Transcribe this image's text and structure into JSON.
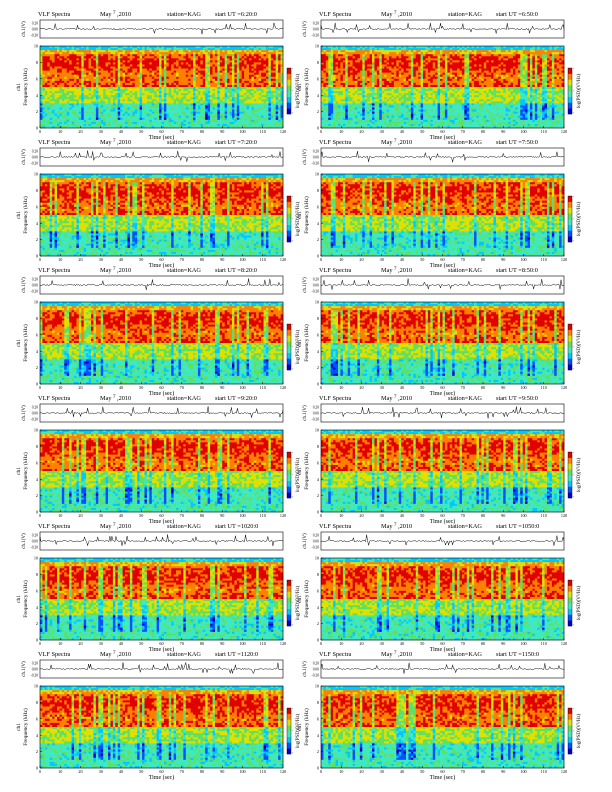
{
  "page": {
    "header_prefix": "VLF Spectra",
    "month_year": "May",
    "day_superscript": "7",
    "year": ",2010",
    "station": "station=KAG",
    "ut_prefix": "start  UT  ="
  },
  "labels": {
    "amp_axis": "ch.1(V)",
    "freq_axis_ch": "ch1",
    "freq_axis": "Frequency  (kHz)",
    "time_axis": "Time  (sec)",
    "colorbar_label": "log(PSD)(V²/Hz)"
  },
  "colors": {
    "spectrogram_scale": [
      "#0000c8",
      "#0050ff",
      "#00c8ff",
      "#40e8c0",
      "#60e060",
      "#e0e000",
      "#ff8000",
      "#e00000"
    ],
    "frame": "#000000",
    "background": "#ffffff"
  },
  "chart_data": [
    {
      "type": "heatmap",
      "panel": 1,
      "start_ut": "6:20:0",
      "xlim": [
        0,
        120
      ],
      "ylim": [
        0,
        10
      ],
      "x_ticks": [
        0,
        10,
        20,
        30,
        40,
        50,
        60,
        70,
        80,
        90,
        100,
        110,
        120
      ],
      "y_ticks": [
        0,
        2,
        4,
        6,
        8,
        10
      ],
      "amp_ticks": [
        "0.20",
        "0.00",
        "-0.20"
      ],
      "colorbar_ticks": [
        "-",
        "-",
        "-"
      ]
    },
    {
      "type": "heatmap",
      "panel": 2,
      "start_ut": "6:50:0",
      "xlim": [
        0,
        120
      ],
      "ylim": [
        0,
        10
      ],
      "x_ticks": [
        0,
        10,
        20,
        30,
        40,
        50,
        60,
        70,
        80,
        90,
        100,
        110,
        120
      ],
      "y_ticks": [
        0,
        2,
        4,
        6,
        8,
        10
      ],
      "amp_ticks": [
        "0.20",
        "0.00",
        "-0.20"
      ],
      "colorbar_ticks": [
        "-",
        "-",
        "-"
      ]
    },
    {
      "type": "heatmap",
      "panel": 3,
      "start_ut": "7:20:0",
      "xlim": [
        0,
        120
      ],
      "ylim": [
        0,
        10
      ],
      "x_ticks": [
        0,
        10,
        20,
        30,
        40,
        50,
        60,
        70,
        80,
        90,
        100,
        110,
        120
      ],
      "y_ticks": [
        0,
        2,
        4,
        6,
        8,
        10
      ],
      "amp_ticks": [
        "0.20",
        "0.00",
        "-0.20"
      ],
      "colorbar_ticks": [
        "-",
        "-",
        "-"
      ]
    },
    {
      "type": "heatmap",
      "panel": 4,
      "start_ut": "7:50:0",
      "xlim": [
        0,
        120
      ],
      "ylim": [
        0,
        10
      ],
      "x_ticks": [
        0,
        10,
        20,
        30,
        40,
        50,
        60,
        70,
        80,
        90,
        100,
        110,
        120
      ],
      "y_ticks": [
        0,
        2,
        4,
        6,
        8,
        10
      ],
      "amp_ticks": [
        "0.20",
        "0.00",
        "-0.20"
      ],
      "colorbar_ticks": [
        "-",
        "-",
        "-"
      ]
    },
    {
      "type": "heatmap",
      "panel": 5,
      "start_ut": "8:20:0",
      "xlim": [
        0,
        120
      ],
      "ylim": [
        0,
        10
      ],
      "x_ticks": [
        0,
        10,
        20,
        30,
        40,
        50,
        60,
        70,
        80,
        90,
        100,
        110,
        120
      ],
      "y_ticks": [
        0,
        2,
        4,
        6,
        8,
        10
      ],
      "amp_ticks": [
        "0.20",
        "0.00",
        "-0.20"
      ],
      "colorbar_ticks": [
        "-",
        "-",
        "-"
      ]
    },
    {
      "type": "heatmap",
      "panel": 6,
      "start_ut": "8:50:0",
      "xlim": [
        0,
        120
      ],
      "ylim": [
        0,
        10
      ],
      "x_ticks": [
        0,
        10,
        20,
        30,
        40,
        50,
        60,
        70,
        80,
        90,
        100,
        110,
        120
      ],
      "y_ticks": [
        0,
        2,
        4,
        6,
        8,
        10
      ],
      "amp_ticks": [
        "0.20",
        "0.00",
        "-0.20"
      ],
      "colorbar_ticks": [
        "-",
        "-",
        "-"
      ]
    },
    {
      "type": "heatmap",
      "panel": 7,
      "start_ut": "9:20:0",
      "xlim": [
        0,
        120
      ],
      "ylim": [
        0,
        10
      ],
      "x_ticks": [
        0,
        10,
        20,
        30,
        40,
        50,
        60,
        70,
        80,
        90,
        100,
        110,
        120
      ],
      "y_ticks": [
        0,
        2,
        4,
        6,
        8,
        10
      ],
      "amp_ticks": [
        "0.20",
        "0.00",
        "-0.20"
      ],
      "colorbar_ticks": [
        "-",
        "-",
        "-"
      ]
    },
    {
      "type": "heatmap",
      "panel": 8,
      "start_ut": "9:50:0",
      "xlim": [
        0,
        120
      ],
      "ylim": [
        0,
        10
      ],
      "x_ticks": [
        0,
        10,
        20,
        30,
        40,
        50,
        60,
        70,
        80,
        90,
        100,
        110,
        120
      ],
      "y_ticks": [
        0,
        2,
        4,
        6,
        8,
        10
      ],
      "amp_ticks": [
        "0.20",
        "0.00",
        "-0.20"
      ],
      "colorbar_ticks": [
        "-",
        "-",
        "-"
      ]
    },
    {
      "type": "heatmap",
      "panel": 9,
      "start_ut": "1020:0",
      "xlim": [
        0,
        120
      ],
      "ylim": [
        0,
        10
      ],
      "x_ticks": [
        0,
        10,
        20,
        30,
        40,
        50,
        60,
        70,
        80,
        90,
        100,
        110,
        120
      ],
      "y_ticks": [
        0,
        2,
        4,
        6,
        8,
        10
      ],
      "amp_ticks": [
        "0.20",
        "0.00",
        "-0.20"
      ],
      "colorbar_ticks": [
        "-",
        "-",
        "-"
      ]
    },
    {
      "type": "heatmap",
      "panel": 10,
      "start_ut": "1050:0",
      "xlim": [
        0,
        120
      ],
      "ylim": [
        0,
        10
      ],
      "x_ticks": [
        0,
        10,
        20,
        30,
        40,
        50,
        60,
        70,
        80,
        90,
        100,
        110,
        120
      ],
      "y_ticks": [
        0,
        2,
        4,
        6,
        8,
        10
      ],
      "amp_ticks": [
        "0.20",
        "0.00",
        "-0.20"
      ],
      "colorbar_ticks": [
        "-",
        "-",
        "-"
      ]
    },
    {
      "type": "heatmap",
      "panel": 11,
      "start_ut": "1120:0",
      "xlim": [
        0,
        120
      ],
      "ylim": [
        0,
        10
      ],
      "x_ticks": [
        0,
        10,
        20,
        30,
        40,
        50,
        60,
        70,
        80,
        90,
        100,
        110,
        120
      ],
      "y_ticks": [
        0,
        2,
        4,
        6,
        8,
        10
      ],
      "amp_ticks": [
        "0.20",
        "0.00",
        "-0.20"
      ],
      "colorbar_ticks": [
        "-",
        "-",
        "-"
      ]
    },
    {
      "type": "heatmap",
      "panel": 12,
      "start_ut": "1150:0",
      "xlim": [
        0,
        120
      ],
      "ylim": [
        0,
        10
      ],
      "x_ticks": [
        0,
        10,
        20,
        30,
        40,
        50,
        60,
        70,
        80,
        90,
        100,
        110,
        120
      ],
      "y_ticks": [
        0,
        2,
        4,
        6,
        8,
        10
      ],
      "amp_ticks": [
        "0.20",
        "0.00",
        "-0.20"
      ],
      "colorbar_ticks": [
        "-",
        "-",
        "-"
      ]
    }
  ]
}
